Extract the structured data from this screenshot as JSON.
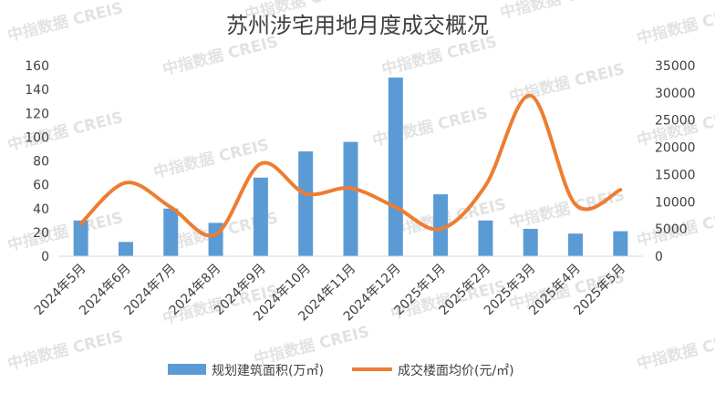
{
  "chart_data": {
    "type": "bar+line",
    "title": "苏州涉宅用地月度成交概况",
    "categories": [
      "2024年5月",
      "2024年6月",
      "2024年7月",
      "2024年8月",
      "2024年9月",
      "2024年10月",
      "2024年11月",
      "2024年12月",
      "2025年1月",
      "2025年2月",
      "2025年3月",
      "2025年4月",
      "2025年5月"
    ],
    "series": [
      {
        "name": "规划建筑面积(万㎡)",
        "type": "bar",
        "axis": "left",
        "color": "#5b9bd5",
        "values": [
          30,
          12,
          40,
          28,
          66,
          88,
          96,
          150,
          52,
          30,
          23,
          19,
          21
        ]
      },
      {
        "name": "成交楼面均价(元/㎡)",
        "type": "line",
        "axis": "right",
        "color": "#ed7d31",
        "values": [
          6000,
          13500,
          9000,
          4000,
          17000,
          11500,
          12500,
          9000,
          5000,
          13000,
          29500,
          9500,
          12200
        ]
      }
    ],
    "y_left": {
      "min": 0,
      "max": 160,
      "ticks": [
        "0",
        "20",
        "40",
        "60",
        "80",
        "100",
        "120",
        "140",
        "160"
      ]
    },
    "y_right": {
      "min": 0,
      "max": 35000,
      "ticks": [
        "0",
        "5000",
        "10000",
        "15000",
        "20000",
        "25000",
        "30000",
        "35000"
      ]
    },
    "grid": false,
    "legend_position": "bottom",
    "watermark": "中指数据 CREIS"
  }
}
